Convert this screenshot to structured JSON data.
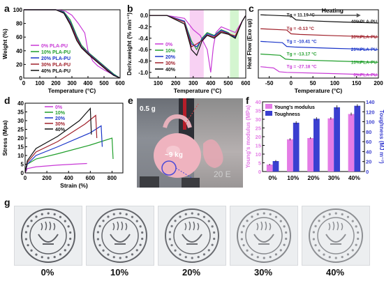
{
  "panels": {
    "a": {
      "letter": "a",
      "ylabel": "Weight (%)",
      "xlabel": "Temperature (°C)",
      "legend": [
        "0%  PLA-PU",
        "10% PLA-PU",
        "20% PLA-PU",
        "30% PLA-PU",
        "40% PLA-PU"
      ]
    },
    "b": {
      "letter": "b",
      "ylabel": "Deriv.weight (% min⁻¹)",
      "xlabel": "Temperature (°C)",
      "legend": [
        "0%",
        "10%",
        "20%",
        "30%",
        "40%"
      ]
    },
    "c": {
      "letter": "c",
      "ylabel": "Heat Flow (Exo up)",
      "xlabel": "Temperature (°C)",
      "heating_label": "Heating",
      "tg_labels": [
        "Tg = 11.19 °C",
        "Tg = -0.13 °C",
        "Tg = -10.41 °C",
        "Tg = -13.17 °C",
        "Tg = -27.18 °C"
      ],
      "series_labels": [
        "40%PLA-PU",
        "30%PLA-PU",
        "20%PLA-PU",
        "10%PLA-PU",
        "0%PLA-PU"
      ]
    },
    "d": {
      "letter": "d",
      "ylabel": "Stress (Mpa)",
      "xlabel": "Strain (%)",
      "legend": [
        "0%",
        "10%",
        "20%",
        "30%",
        "40%"
      ]
    },
    "e": {
      "letter": "e",
      "weight_label": "0.5 g",
      "load_label": "~9 kg"
    },
    "f": {
      "letter": "f",
      "ylabel_left": "Young's modulus (MPa)",
      "ylabel_right": "Toughness (MJ m⁻³)",
      "legend": [
        "Young's modulus",
        "Toughness"
      ]
    },
    "g": {
      "letter": "g",
      "labels": [
        "0%",
        "10%",
        "20%",
        "30%",
        "40%"
      ]
    }
  },
  "colors": {
    "s0": "#c839d6",
    "s10": "#1f9e2a",
    "s20": "#1a35c9",
    "s30": "#a0202a",
    "s40": "#111111",
    "young": "#e47ce6",
    "tough": "#3a3fd0"
  },
  "chart_data": [
    {
      "panel": "a",
      "type": "line",
      "xlabel": "Temperature (°C)",
      "ylabel": "Weight (%)",
      "xlim": [
        0,
        600
      ],
      "ylim": [
        0,
        100
      ],
      "xticks": [
        0,
        100,
        200,
        300,
        400,
        500,
        600
      ],
      "yticks": [
        0,
        20,
        40,
        60,
        80,
        100
      ],
      "series": [
        {
          "name": "0%  PLA-PU",
          "x": [
            0,
            200,
            260,
            300,
            340,
            380,
            400,
            430,
            460,
            500,
            540,
            570,
            600
          ],
          "y": [
            100,
            100,
            98,
            92,
            80,
            66,
            40,
            25,
            18,
            12,
            7,
            3,
            0
          ]
        },
        {
          "name": "10% PLA-PU",
          "x": [
            0,
            200,
            250,
            290,
            330,
            360,
            400,
            440,
            480,
            520,
            560,
            600
          ],
          "y": [
            100,
            100,
            97,
            85,
            62,
            48,
            38,
            30,
            22,
            14,
            6,
            0
          ]
        },
        {
          "name": "20% PLA-PU",
          "x": [
            0,
            200,
            250,
            290,
            330,
            360,
            400,
            440,
            480,
            520,
            560,
            600
          ],
          "y": [
            100,
            100,
            96,
            82,
            60,
            46,
            37,
            29,
            21,
            13,
            5,
            0
          ]
        },
        {
          "name": "30% PLA-PU",
          "x": [
            0,
            200,
            250,
            290,
            330,
            360,
            400,
            440,
            480,
            520,
            560,
            600
          ],
          "y": [
            100,
            100,
            95,
            80,
            58,
            45,
            36,
            28,
            20,
            12,
            4,
            0
          ]
        },
        {
          "name": "40% PLA-PU",
          "x": [
            0,
            200,
            250,
            290,
            330,
            360,
            400,
            440,
            480,
            520,
            560,
            600
          ],
          "y": [
            100,
            100,
            95,
            78,
            55,
            44,
            35,
            27,
            19,
            11,
            4,
            0
          ]
        }
      ]
    },
    {
      "panel": "b",
      "type": "line",
      "xlabel": "Temperature (°C)",
      "ylabel": "Deriv.weight (% min⁻¹)",
      "xlim": [
        50,
        600
      ],
      "ylim": [
        -1.1,
        0.1
      ],
      "xticks": [
        100,
        200,
        300,
        400,
        500,
        600
      ],
      "yticks": [
        0.0,
        -0.2,
        -0.4,
        -0.6,
        -0.8,
        -1.0
      ],
      "shaded_ranges": [
        [
          280,
          360
        ],
        [
          510,
          560
        ]
      ],
      "series": [
        {
          "name": "0%",
          "x": [
            50,
            150,
            250,
            300,
            340,
            380,
            400,
            415,
            430,
            460,
            500,
            540,
            580,
            600
          ],
          "y": [
            0,
            0,
            -0.05,
            -0.25,
            -0.35,
            -0.6,
            -1.0,
            -0.55,
            -0.3,
            -0.2,
            -0.25,
            -0.3,
            -0.1,
            0
          ]
        },
        {
          "name": "10%",
          "x": [
            50,
            150,
            250,
            290,
            320,
            350,
            380,
            420,
            460,
            500,
            540,
            580,
            600
          ],
          "y": [
            0,
            0,
            -0.1,
            -0.45,
            -0.6,
            -0.4,
            -0.3,
            -0.35,
            -0.25,
            -0.3,
            -0.4,
            -0.1,
            0
          ]
        },
        {
          "name": "20%",
          "x": [
            50,
            150,
            250,
            290,
            320,
            350,
            380,
            420,
            460,
            500,
            540,
            580,
            600
          ],
          "y": [
            0,
            0,
            -0.1,
            -0.5,
            -0.55,
            -0.42,
            -0.32,
            -0.36,
            -0.26,
            -0.31,
            -0.38,
            -0.1,
            0
          ]
        },
        {
          "name": "30%",
          "x": [
            50,
            150,
            250,
            290,
            320,
            350,
            380,
            420,
            460,
            500,
            540,
            580,
            600
          ],
          "y": [
            0,
            0,
            -0.12,
            -0.55,
            -0.5,
            -0.44,
            -0.34,
            -0.38,
            -0.28,
            -0.32,
            -0.36,
            -0.1,
            0
          ]
        },
        {
          "name": "40%",
          "x": [
            50,
            150,
            250,
            290,
            320,
            350,
            380,
            420,
            460,
            500,
            540,
            580,
            600
          ],
          "y": [
            0,
            0,
            -0.15,
            -0.6,
            -0.7,
            -0.45,
            -0.35,
            -0.4,
            -0.3,
            -0.33,
            -0.4,
            -0.1,
            0
          ]
        }
      ]
    },
    {
      "panel": "c",
      "type": "line",
      "xlabel": "Temperature (°C)",
      "ylabel": "Heat Flow (Exo up)",
      "xlim": [
        -75,
        200
      ],
      "xticks": [
        -50,
        0,
        50,
        100,
        150,
        200
      ],
      "series": [
        {
          "name": "40%PLA-PU",
          "x": [
            -70,
            0,
            11,
            30,
            100,
            150,
            200
          ],
          "y": [
            5.0,
            4.9,
            4.6,
            4.55,
            4.45,
            4.4,
            4.35
          ]
        },
        {
          "name": "30%PLA-PU",
          "x": [
            -70,
            -10,
            0,
            20,
            100,
            150,
            200
          ],
          "y": [
            3.9,
            3.8,
            3.5,
            3.45,
            3.35,
            3.3,
            3.25
          ]
        },
        {
          "name": "20%PLA-PU",
          "x": [
            -70,
            -20,
            -10,
            10,
            100,
            150,
            200
          ],
          "y": [
            2.9,
            2.8,
            2.5,
            2.45,
            2.35,
            2.3,
            2.25
          ]
        },
        {
          "name": "10%PLA-PU",
          "x": [
            -70,
            -25,
            -13,
            5,
            100,
            150,
            200
          ],
          "y": [
            1.9,
            1.8,
            1.5,
            1.45,
            1.35,
            1.3,
            1.25
          ]
        },
        {
          "name": "0%PLA-PU",
          "x": [
            -70,
            -40,
            -27,
            -10,
            100,
            150,
            200
          ],
          "y": [
            0.9,
            0.8,
            0.5,
            0.45,
            0.35,
            0.3,
            0.25
          ]
        }
      ]
    },
    {
      "panel": "d",
      "type": "line",
      "xlabel": "Strain (%)",
      "ylabel": "Stress (Mpa)",
      "xlim": [
        0,
        900
      ],
      "ylim": [
        0,
        40
      ],
      "xticks": [
        0,
        200,
        400,
        600,
        800
      ],
      "yticks": [
        0,
        5,
        10,
        15,
        20,
        25,
        30,
        35,
        40
      ],
      "series": [
        {
          "name": "0%",
          "x": [
            0,
            20,
            100,
            300,
            500,
            570
          ],
          "y": [
            0,
            2.5,
            3.5,
            4.5,
            5.2,
            5.4
          ]
        },
        {
          "name": "10%",
          "x": [
            0,
            20,
            100,
            300,
            600,
            800,
            810
          ],
          "y": [
            0,
            5,
            8,
            11,
            16,
            20,
            8
          ]
        },
        {
          "name": "20%",
          "x": [
            0,
            20,
            100,
            300,
            600,
            700,
            710
          ],
          "y": [
            0,
            5,
            10,
            15,
            23,
            27,
            15
          ]
        },
        {
          "name": "30%",
          "x": [
            0,
            20,
            100,
            300,
            550,
            650,
            660
          ],
          "y": [
            0,
            6,
            12,
            18,
            28,
            33,
            20
          ]
        },
        {
          "name": "40%",
          "x": [
            0,
            20,
            100,
            300,
            500,
            600,
            610
          ],
          "y": [
            0,
            7,
            14,
            21,
            30,
            37,
            22
          ]
        }
      ]
    },
    {
      "panel": "f",
      "type": "bar",
      "categories": [
        "0%",
        "10%",
        "20%",
        "30%",
        "40%"
      ],
      "ylim_left": [
        0,
        40
      ],
      "ylim_right": [
        0,
        140
      ],
      "yticks_left": [
        0,
        5,
        10,
        15,
        20,
        25,
        30,
        35,
        40
      ],
      "yticks_right": [
        0,
        20,
        40,
        60,
        80,
        100,
        120,
        140
      ],
      "series": [
        {
          "name": "Young's modulus",
          "axis": "left",
          "values": [
            4.0,
            18.5,
            19.2,
            30.5,
            33.0
          ],
          "errors": [
            0.4,
            0.6,
            0.5,
            0.7,
            0.8
          ]
        },
        {
          "name": "Toughness",
          "axis": "right",
          "values": [
            21,
            98,
            106,
            129,
            132
          ],
          "errors": [
            2,
            3,
            3,
            4,
            3
          ]
        }
      ]
    }
  ]
}
